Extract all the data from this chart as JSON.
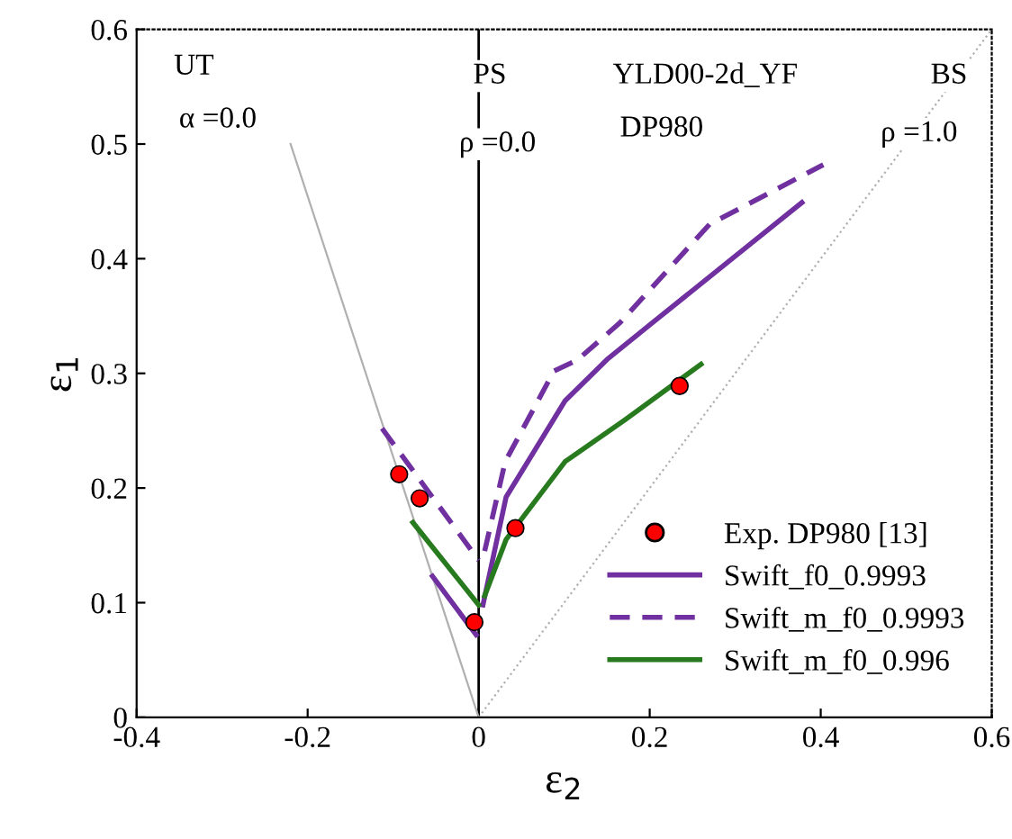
{
  "chart_data": {
    "type": "line",
    "xlabel": "ε$_{2}$",
    "ylabel": "ε$_{1}$",
    "xlim": [
      -0.4,
      0.6
    ],
    "ylim": [
      0,
      0.6
    ],
    "xticks": [
      -0.4,
      -0.2,
      0,
      0.2,
      0.4,
      0.6
    ],
    "yticks": [
      0,
      0.1,
      0.2,
      0.3,
      0.4,
      0.5,
      0.6
    ],
    "grid": false,
    "legend": "lower right",
    "ref_lines": [
      {
        "axis": "x",
        "value": 0,
        "color": "#000000",
        "line_style": "solid"
      }
    ],
    "series": [
      {
        "color": "#b0b0b0",
        "line_style": "solid",
        "marker": "none",
        "x": [
          0,
          -0.22
        ],
        "values": [
          0,
          0.5
        ]
      },
      {
        "color": "#b0b0b0",
        "line_style": "dotted",
        "marker": "none",
        "x": [
          0,
          0.6
        ],
        "values": [
          0,
          0.6
        ]
      },
      {
        "type": "scatter",
        "name": "Exp. DP980 [13]",
        "color": "#ff0000",
        "marker": "circle",
        "x": [
          -0.093,
          -0.069,
          -0.005,
          0.043,
          0.235
        ],
        "values": [
          0.212,
          0.191,
          0.083,
          0.165,
          0.289
        ]
      },
      {
        "name": "Swift_f0_0.9993",
        "color": "#7030a0",
        "line_style": "solid",
        "marker": "none",
        "x": [
          -0.054,
          -0.003,
          0.0,
          0.005,
          0.032,
          0.101,
          0.15,
          0.203,
          0.378
        ],
        "values": [
          0.123,
          0.072,
          null,
          0.098,
          0.192,
          0.276,
          0.312,
          0.344,
          0.449
        ]
      },
      {
        "name": "Swift_m_f0_0.9993",
        "color": "#7030a0",
        "line_style": "dashed",
        "marker": "none",
        "x": [
          -0.113,
          0.0,
          0.003,
          0.007,
          0.031,
          0.088,
          0.116,
          0.165,
          0.27,
          0.403
        ],
        "values": [
          0.252,
          0.137,
          null,
          0.145,
          0.223,
          0.302,
          0.312,
          0.344,
          0.43,
          0.482
        ]
      },
      {
        "name": "Swift_m_f0_0.996",
        "color": "#287a1e",
        "line_style": "solid",
        "marker": "none",
        "x": [
          -0.077,
          0.0,
          0.003,
          0.007,
          0.032,
          0.101,
          0.172,
          0.26
        ],
        "values": [
          0.17,
          0.098,
          null,
          0.106,
          0.155,
          0.223,
          0.26,
          0.308
        ]
      }
    ],
    "annotations": [
      "UT",
      "α =0.0",
      "PS",
      "ρ =0.0",
      "YLD00-2d_YF",
      "DP980",
      "BS",
      "ρ =1.0"
    ]
  }
}
